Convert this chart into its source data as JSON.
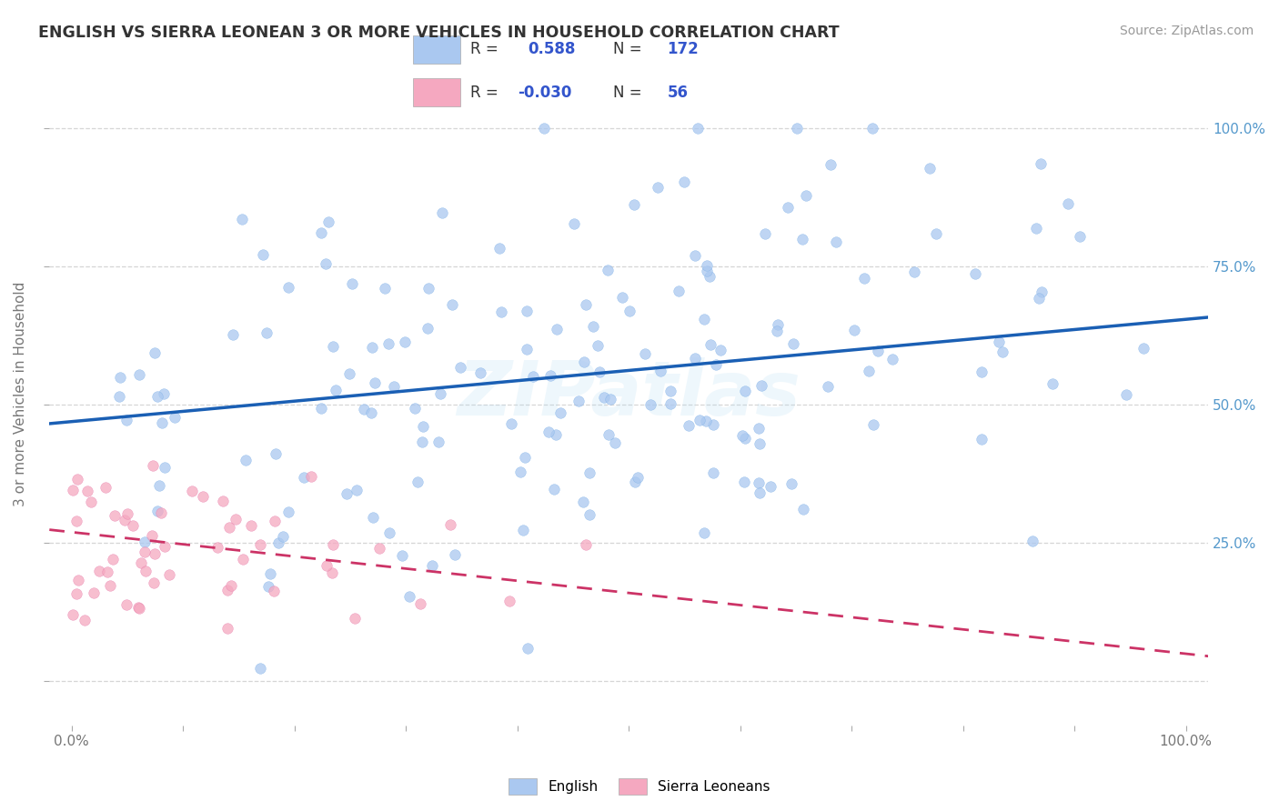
{
  "title": "ENGLISH VS SIERRA LEONEAN 3 OR MORE VEHICLES IN HOUSEHOLD CORRELATION CHART",
  "source": "Source: ZipAtlas.com",
  "ylabel": "3 or more Vehicles in Household",
  "xlim": [
    -0.02,
    1.02
  ],
  "ylim": [
    -0.08,
    1.12
  ],
  "english_R": 0.588,
  "english_N": 172,
  "sierra_R": -0.03,
  "sierra_N": 56,
  "english_color": "#aac8f0",
  "english_edge_color": "#7aaee8",
  "english_line_color": "#1a5fb4",
  "sierra_color": "#f5a8c0",
  "sierra_edge_color": "#e87aaa",
  "sierra_line_color": "#cc3366",
  "watermark": "ZIPatlas",
  "background_color": "#ffffff",
  "grid_color": "#cccccc",
  "title_color": "#333333",
  "right_tick_color": "#5599cc",
  "legend_color": "#3355cc",
  "ytick_positions": [
    0.0,
    0.25,
    0.5,
    0.75,
    1.0
  ],
  "right_yticklabels": [
    "",
    "25.0%",
    "50.0%",
    "75.0%",
    "100.0%"
  ],
  "eng_line_x0": 0.0,
  "eng_line_y0": 0.47,
  "eng_line_x1": 1.0,
  "eng_line_y1": 0.655,
  "sle_line_x0": 0.0,
  "sle_line_y0": 0.27,
  "sle_line_x1": 1.0,
  "sle_line_y1": 0.05
}
